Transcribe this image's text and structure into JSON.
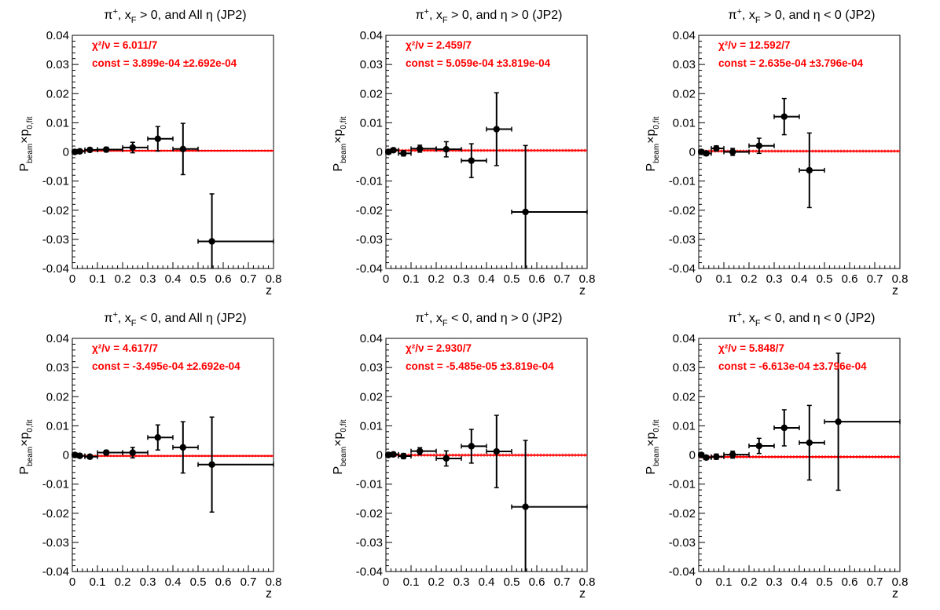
{
  "colors": {
    "fit": "#ff0000",
    "points": "#000000",
    "axis": "#000000",
    "stats": "#ff0000"
  },
  "chart_data": [
    {
      "type": "scatter",
      "title": {
        "pre": "π",
        "sup": "+",
        "mid": ", x",
        "sub": "F",
        "post": " > 0, and All η (JP2)"
      },
      "xlabel": "z",
      "ylabel": {
        "main": "P",
        "sub1": "beam",
        "times": "×p",
        "sub2": "0,fit"
      },
      "xlim": [
        0,
        0.8
      ],
      "ylim": [
        -0.04,
        0.04
      ],
      "xticks": [
        "0",
        "0.1",
        "0.2",
        "0.3",
        "0.4",
        "0.5",
        "0.6",
        "0.7",
        "0.8"
      ],
      "yticks": [
        "-0.04",
        "-0.03",
        "-0.02",
        "-0.01",
        "0",
        "0.01",
        "0.02",
        "0.03",
        "0.04"
      ],
      "stats": {
        "chi2": "χ²/ν = 6.011/7",
        "const": "const = 3.899e-04  ±2.692e-04"
      },
      "fit": {
        "value": 0.0003899,
        "error": 0.0002692
      },
      "points": [
        {
          "x": 0.01,
          "y": 0.0,
          "xlo": 0.0,
          "xhi": 0.02,
          "ey": 0.0005
        },
        {
          "x": 0.03,
          "y": 0.0002,
          "xlo": 0.02,
          "xhi": 0.05,
          "ey": 0.0005
        },
        {
          "x": 0.07,
          "y": 0.0007,
          "xlo": 0.05,
          "xhi": 0.1,
          "ey": 0.0007
        },
        {
          "x": 0.135,
          "y": 0.0008,
          "xlo": 0.1,
          "xhi": 0.2,
          "ey": 0.0008
        },
        {
          "x": 0.24,
          "y": 0.0015,
          "xlo": 0.2,
          "xhi": 0.3,
          "ey": 0.0018
        },
        {
          "x": 0.34,
          "y": 0.0045,
          "xlo": 0.3,
          "xhi": 0.4,
          "ey": 0.0042
        },
        {
          "x": 0.44,
          "y": 0.001,
          "xlo": 0.4,
          "xhi": 0.5,
          "ey": 0.0088
        },
        {
          "x": 0.555,
          "y": -0.0307,
          "xlo": 0.5,
          "xhi": 0.8,
          "ey": 0.0163
        }
      ]
    },
    {
      "type": "scatter",
      "title": {
        "pre": "π",
        "sup": "+",
        "mid": ", x",
        "sub": "F",
        "post": " > 0, and η > 0 (JP2)"
      },
      "xlabel": "z",
      "ylabel": {
        "main": "P",
        "sub1": "beam",
        "times": "×p",
        "sub2": "0,fit"
      },
      "xlim": [
        0,
        0.8
      ],
      "ylim": [
        -0.04,
        0.04
      ],
      "xticks": [
        "0",
        "0.1",
        "0.2",
        "0.3",
        "0.4",
        "0.5",
        "0.6",
        "0.7",
        "0.8"
      ],
      "yticks": [
        "-0.04",
        "-0.03",
        "-0.02",
        "-0.01",
        "0",
        "0.01",
        "0.02",
        "0.03",
        "0.04"
      ],
      "stats": {
        "chi2": "χ²/ν = 2.459/7",
        "const": "const = 5.059e-04  ±3.819e-04"
      },
      "fit": {
        "value": 0.0005059,
        "error": 0.0003819
      },
      "points": [
        {
          "x": 0.01,
          "y": 0.0,
          "xlo": 0.0,
          "xhi": 0.02,
          "ey": 0.0006
        },
        {
          "x": 0.03,
          "y": 0.0006,
          "xlo": 0.02,
          "xhi": 0.05,
          "ey": 0.0006
        },
        {
          "x": 0.07,
          "y": -0.0005,
          "xlo": 0.05,
          "xhi": 0.1,
          "ey": 0.0009
        },
        {
          "x": 0.135,
          "y": 0.0011,
          "xlo": 0.1,
          "xhi": 0.2,
          "ey": 0.0012
        },
        {
          "x": 0.24,
          "y": 0.0009,
          "xlo": 0.2,
          "xhi": 0.3,
          "ey": 0.0026
        },
        {
          "x": 0.34,
          "y": -0.003,
          "xlo": 0.3,
          "xhi": 0.4,
          "ey": 0.0058
        },
        {
          "x": 0.44,
          "y": 0.0078,
          "xlo": 0.4,
          "xhi": 0.5,
          "ey": 0.0125
        },
        {
          "x": 0.555,
          "y": -0.0206,
          "xlo": 0.5,
          "xhi": 0.8,
          "ey": 0.0228
        }
      ]
    },
    {
      "type": "scatter",
      "title": {
        "pre": "π",
        "sup": "+",
        "mid": ", x",
        "sub": "F",
        "post": " > 0, and η < 0 (JP2)"
      },
      "xlabel": "z",
      "ylabel": {
        "main": "P",
        "sub1": "beam",
        "times": "×p",
        "sub2": "0,fit"
      },
      "xlim": [
        0,
        0.8
      ],
      "ylim": [
        -0.04,
        0.04
      ],
      "xticks": [
        "0",
        "0.1",
        "0.2",
        "0.3",
        "0.4",
        "0.5",
        "0.6",
        "0.7",
        "0.8"
      ],
      "yticks": [
        "-0.04",
        "-0.03",
        "-0.02",
        "-0.01",
        "0",
        "0.01",
        "0.02",
        "0.03",
        "0.04"
      ],
      "stats": {
        "chi2": "χ²/ν = 12.592/7",
        "const": "const = 2.635e-04  ±3.796e-04"
      },
      "fit": {
        "value": 0.0002635,
        "error": 0.0003796
      },
      "points": [
        {
          "x": 0.01,
          "y": 0.0,
          "xlo": 0.0,
          "xhi": 0.02,
          "ey": 0.0007
        },
        {
          "x": 0.03,
          "y": -0.0005,
          "xlo": 0.02,
          "xhi": 0.05,
          "ey": 0.0007
        },
        {
          "x": 0.07,
          "y": 0.0012,
          "xlo": 0.05,
          "xhi": 0.1,
          "ey": 0.0009
        },
        {
          "x": 0.135,
          "y": 0.0,
          "xlo": 0.1,
          "xhi": 0.2,
          "ey": 0.0012
        },
        {
          "x": 0.24,
          "y": 0.0021,
          "xlo": 0.2,
          "xhi": 0.3,
          "ey": 0.0026
        },
        {
          "x": 0.34,
          "y": 0.0121,
          "xlo": 0.3,
          "xhi": 0.4,
          "ey": 0.0062
        },
        {
          "x": 0.44,
          "y": -0.0063,
          "xlo": 0.4,
          "xhi": 0.5,
          "ey": 0.0128
        }
      ]
    },
    {
      "type": "scatter",
      "title": {
        "pre": "π",
        "sup": "+",
        "mid": ", x",
        "sub": "F",
        "post": " < 0, and All η (JP2)"
      },
      "xlabel": "z",
      "ylabel": {
        "main": "P",
        "sub1": "beam",
        "times": "×p",
        "sub2": "0,fit"
      },
      "xlim": [
        0,
        0.8
      ],
      "ylim": [
        -0.04,
        0.04
      ],
      "xticks": [
        "0",
        "0.1",
        "0.2",
        "0.3",
        "0.4",
        "0.5",
        "0.6",
        "0.7",
        "0.8"
      ],
      "yticks": [
        "-0.04",
        "-0.03",
        "-0.02",
        "-0.01",
        "0",
        "0.01",
        "0.02",
        "0.03",
        "0.04"
      ],
      "stats": {
        "chi2": "χ²/ν = 4.617/7",
        "const": "const = -3.495e-04  ±2.692e-04"
      },
      "fit": {
        "value": -0.0003495,
        "error": 0.0002692
      },
      "points": [
        {
          "x": 0.01,
          "y": 0.0,
          "xlo": 0.0,
          "xhi": 0.02,
          "ey": 0.0005
        },
        {
          "x": 0.03,
          "y": -0.0003,
          "xlo": 0.02,
          "xhi": 0.05,
          "ey": 0.0005
        },
        {
          "x": 0.07,
          "y": -0.0006,
          "xlo": 0.05,
          "xhi": 0.1,
          "ey": 0.0007
        },
        {
          "x": 0.135,
          "y": 0.0008,
          "xlo": 0.1,
          "xhi": 0.2,
          "ey": 0.0008
        },
        {
          "x": 0.24,
          "y": 0.0008,
          "xlo": 0.2,
          "xhi": 0.3,
          "ey": 0.0018
        },
        {
          "x": 0.34,
          "y": 0.006,
          "xlo": 0.3,
          "xhi": 0.4,
          "ey": 0.0043
        },
        {
          "x": 0.44,
          "y": 0.0026,
          "xlo": 0.4,
          "xhi": 0.5,
          "ey": 0.0088
        },
        {
          "x": 0.555,
          "y": -0.0033,
          "xlo": 0.5,
          "xhi": 0.8,
          "ey": 0.0163
        }
      ]
    },
    {
      "type": "scatter",
      "title": {
        "pre": "π",
        "sup": "+",
        "mid": ", x",
        "sub": "F",
        "post": " < 0, and η > 0 (JP2)"
      },
      "xlabel": "z",
      "ylabel": {
        "main": "P",
        "sub1": "beam",
        "times": "×p",
        "sub2": "0,fit"
      },
      "xlim": [
        0,
        0.8
      ],
      "ylim": [
        -0.04,
        0.04
      ],
      "xticks": [
        "0",
        "0.1",
        "0.2",
        "0.3",
        "0.4",
        "0.5",
        "0.6",
        "0.7",
        "0.8"
      ],
      "yticks": [
        "-0.04",
        "-0.03",
        "-0.02",
        "-0.01",
        "0",
        "0.01",
        "0.02",
        "0.03",
        "0.04"
      ],
      "stats": {
        "chi2": "χ²/ν = 2.930/7",
        "const": "const = -5.485e-05  ±3.819e-04"
      },
      "fit": {
        "value": -5.485e-05,
        "error": 0.0003819
      },
      "points": [
        {
          "x": 0.01,
          "y": 0.0,
          "xlo": 0.0,
          "xhi": 0.02,
          "ey": 0.0006
        },
        {
          "x": 0.03,
          "y": 0.0002,
          "xlo": 0.02,
          "xhi": 0.05,
          "ey": 0.0006
        },
        {
          "x": 0.07,
          "y": -0.0004,
          "xlo": 0.05,
          "xhi": 0.1,
          "ey": 0.0009
        },
        {
          "x": 0.135,
          "y": 0.0013,
          "xlo": 0.1,
          "xhi": 0.2,
          "ey": 0.0012
        },
        {
          "x": 0.24,
          "y": -0.0012,
          "xlo": 0.2,
          "xhi": 0.3,
          "ey": 0.0026
        },
        {
          "x": 0.34,
          "y": 0.003,
          "xlo": 0.3,
          "xhi": 0.4,
          "ey": 0.0058
        },
        {
          "x": 0.44,
          "y": 0.0012,
          "xlo": 0.4,
          "xhi": 0.5,
          "ey": 0.0124
        },
        {
          "x": 0.555,
          "y": -0.0178,
          "xlo": 0.5,
          "xhi": 0.8,
          "ey": 0.0228
        }
      ]
    },
    {
      "type": "scatter",
      "title": {
        "pre": "π",
        "sup": "+",
        "mid": ", x",
        "sub": "F",
        "post": " < 0, and η < 0 (JP2)"
      },
      "xlabel": "z",
      "ylabel": {
        "main": "P",
        "sub1": "beam",
        "times": "×p",
        "sub2": "0,fit"
      },
      "xlim": [
        0,
        0.8
      ],
      "ylim": [
        -0.04,
        0.04
      ],
      "xticks": [
        "0",
        "0.1",
        "0.2",
        "0.3",
        "0.4",
        "0.5",
        "0.6",
        "0.7",
        "0.8"
      ],
      "yticks": [
        "-0.04",
        "-0.03",
        "-0.02",
        "-0.01",
        "0",
        "0.01",
        "0.02",
        "0.03",
        "0.04"
      ],
      "stats": {
        "chi2": "χ²/ν = 5.848/7",
        "const": "const = -6.613e-04  ±3.796e-04"
      },
      "fit": {
        "value": -0.0006613,
        "error": 0.0003796
      },
      "points": [
        {
          "x": 0.01,
          "y": 0.0,
          "xlo": 0.0,
          "xhi": 0.02,
          "ey": 0.0007
        },
        {
          "x": 0.03,
          "y": -0.0009,
          "xlo": 0.02,
          "xhi": 0.05,
          "ey": 0.0007
        },
        {
          "x": 0.07,
          "y": -0.0006,
          "xlo": 0.05,
          "xhi": 0.1,
          "ey": 0.0009
        },
        {
          "x": 0.135,
          "y": 0.0001,
          "xlo": 0.1,
          "xhi": 0.2,
          "ey": 0.0012
        },
        {
          "x": 0.24,
          "y": 0.0031,
          "xlo": 0.2,
          "xhi": 0.3,
          "ey": 0.0026
        },
        {
          "x": 0.34,
          "y": 0.0093,
          "xlo": 0.3,
          "xhi": 0.4,
          "ey": 0.0062
        },
        {
          "x": 0.44,
          "y": 0.0042,
          "xlo": 0.4,
          "xhi": 0.5,
          "ey": 0.0128
        },
        {
          "x": 0.555,
          "y": 0.0114,
          "xlo": 0.5,
          "xhi": 0.8,
          "ey": 0.0235
        }
      ]
    }
  ]
}
